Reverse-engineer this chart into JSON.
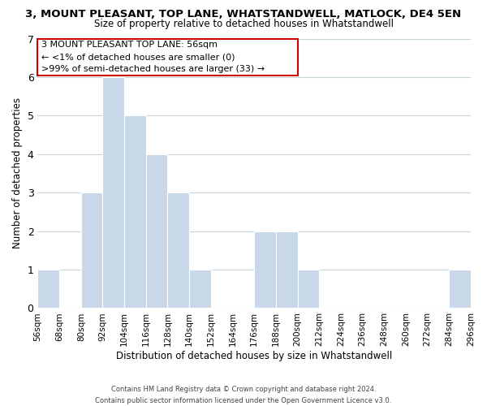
{
  "title": "3, MOUNT PLEASANT, TOP LANE, WHATSTANDWELL, MATLOCK, DE4 5EN",
  "subtitle": "Size of property relative to detached houses in Whatstandwell",
  "xlabel": "Distribution of detached houses by size in Whatstandwell",
  "ylabel": "Number of detached properties",
  "bar_color": "#c8d8e8",
  "bin_edges": [
    56,
    68,
    80,
    92,
    104,
    116,
    128,
    140,
    152,
    164,
    176,
    188,
    200,
    212,
    224,
    236,
    248,
    260,
    272,
    284,
    296
  ],
  "bar_heights": [
    1,
    0,
    3,
    6,
    5,
    4,
    3,
    1,
    0,
    0,
    2,
    2,
    1,
    0,
    0,
    0,
    0,
    0,
    0,
    1
  ],
  "tick_labels": [
    "56sqm",
    "68sqm",
    "80sqm",
    "92sqm",
    "104sqm",
    "116sqm",
    "128sqm",
    "140sqm",
    "152sqm",
    "164sqm",
    "176sqm",
    "188sqm",
    "200sqm",
    "212sqm",
    "224sqm",
    "236sqm",
    "248sqm",
    "260sqm",
    "272sqm",
    "284sqm",
    "296sqm"
  ],
  "ylim": [
    0,
    7
  ],
  "yticks": [
    0,
    1,
    2,
    3,
    4,
    5,
    6,
    7
  ],
  "annotation_title": "3 MOUNT PLEASANT TOP LANE: 56sqm",
  "annotation_line1": "← <1% of detached houses are smaller (0)",
  "annotation_line2": ">99% of semi-detached houses are larger (33) →",
  "annotation_box_edge": "#cc0000",
  "footer_line1": "Contains HM Land Registry data © Crown copyright and database right 2024.",
  "footer_line2": "Contains public sector information licensed under the Open Government Licence v3.0.",
  "bg_color": "#ffffff",
  "grid_color": "#c8d4dc"
}
